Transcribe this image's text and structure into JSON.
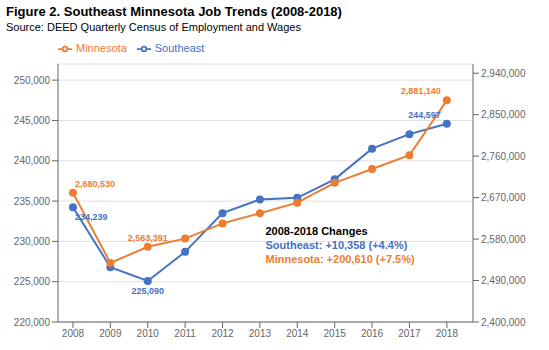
{
  "chart_data": {
    "type": "line",
    "title": "Figure 2. Southeast Minnesota Job Trends (2008-2018)",
    "subtitle": "Source: DEED Quarterly Census of Employment and Wages",
    "x": [
      2008,
      2009,
      2010,
      2011,
      2012,
      2013,
      2014,
      2015,
      2016,
      2017,
      2018
    ],
    "xlim": [
      2007.6,
      2018.7
    ],
    "xticks": [
      2008,
      2009,
      2010,
      2011,
      2012,
      2013,
      2014,
      2015,
      2016,
      2017,
      2018
    ],
    "ylim": [
      220000,
      252000
    ],
    "yticks": [
      {
        "value": 220000,
        "label": "220,000"
      },
      {
        "value": 225000,
        "label": "225,000"
      },
      {
        "value": 230000,
        "label": "230,000"
      },
      {
        "value": 235000,
        "label": "235,000"
      },
      {
        "value": 240000,
        "label": "240,000"
      },
      {
        "value": 245000,
        "label": "245,000"
      },
      {
        "value": 250000,
        "label": "250,000"
      }
    ],
    "y2lim": [
      2400000,
      2960000
    ],
    "y2ticks": [
      {
        "value": 2400000,
        "label": "2,400,000"
      },
      {
        "value": 2490000,
        "label": "2,490,000"
      },
      {
        "value": 2580000,
        "label": "2,580,000"
      },
      {
        "value": 2670000,
        "label": "2,670,000"
      },
      {
        "value": 2760000,
        "label": "2,760,000"
      },
      {
        "value": 2850000,
        "label": "2,850,000"
      },
      {
        "value": 2940000,
        "label": "2,940,000"
      }
    ],
    "grid": true,
    "legend": "upper left",
    "series": [
      {
        "name": "Southeast",
        "color": "#4472C4",
        "marker": "circle",
        "values": [
          234239,
          226800,
          225090,
          228700,
          233500,
          235200,
          235400,
          237700,
          241500,
          243300,
          244597
        ]
      },
      {
        "name": "Minnesota",
        "color": "#ED7D31",
        "marker": "circle",
        "axis": "y2",
        "values": [
          2680530,
          2528000,
          2563391,
          2581000,
          2614000,
          2636000,
          2659000,
          2702000,
          2732000,
          2762000,
          2881140
        ]
      }
    ],
    "annotations": [
      {
        "text": "234,239",
        "x": 2008,
        "series": "Southeast"
      },
      {
        "text": "225,090",
        "x": 2010,
        "series": "Southeast"
      },
      {
        "text": "244,597",
        "x": 2018,
        "series": "Southeast"
      },
      {
        "text": "2,680,530",
        "x": 2008,
        "series": "Minnesota"
      },
      {
        "text": "2,563,391",
        "x": 2010,
        "series": "Minnesota"
      },
      {
        "text": "2,881,140",
        "x": 2018,
        "series": "Minnesota"
      },
      {
        "text": "2008-2018 Changes"
      },
      {
        "text": "Southeast: +10,358 (+4.4%)",
        "series": "Southeast"
      },
      {
        "text": "Minnesota: +200,610 (+7.5%)",
        "series": "Minnesota"
      }
    ]
  }
}
